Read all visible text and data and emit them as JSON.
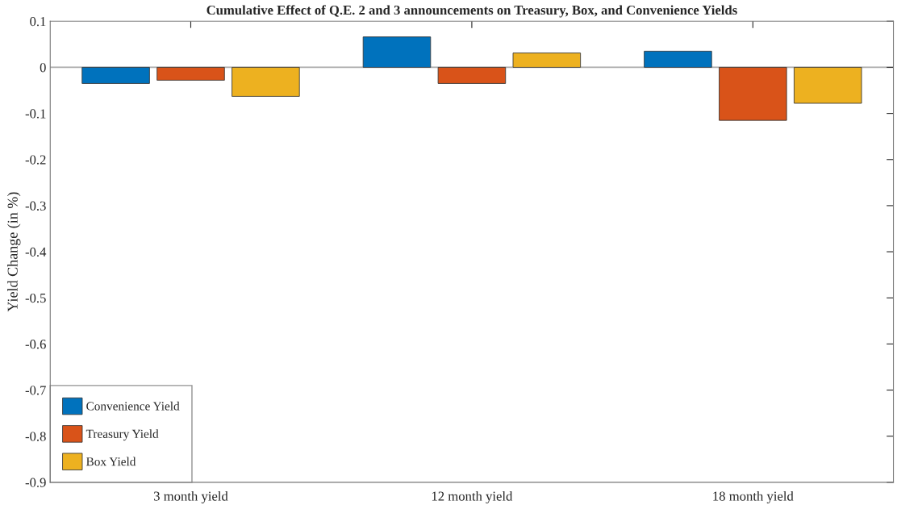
{
  "chart_data": {
    "type": "bar",
    "title": "Cumulative Effect of Q.E. 2 and 3 announcements on Treasury, Box, and Convenience Yields",
    "ylabel": "Yield Change (in %)",
    "categories": [
      "3 month yield",
      "12 month yield",
      "18 month yield"
    ],
    "series": [
      {
        "name": "Convenience Yield",
        "color": "#0072bd",
        "values": [
          -0.035,
          0.066,
          0.035
        ]
      },
      {
        "name": "Treasury Yield",
        "color": "#d95319",
        "values": [
          -0.028,
          -0.035,
          -0.115
        ]
      },
      {
        "name": "Box Yield",
        "color": "#edb120",
        "values": [
          -0.063,
          0.031,
          -0.078
        ]
      }
    ],
    "ylim": [
      -0.9,
      0.1
    ],
    "yticks": [
      -0.9,
      -0.8,
      -0.7,
      -0.6,
      -0.5,
      -0.4,
      -0.3,
      -0.2,
      -0.1,
      0,
      0.1
    ],
    "ref_lines": [
      {
        "axis": "y",
        "value": 0,
        "color": "#aaaaaa"
      }
    ],
    "grid": false,
    "legend": "bottom left"
  }
}
